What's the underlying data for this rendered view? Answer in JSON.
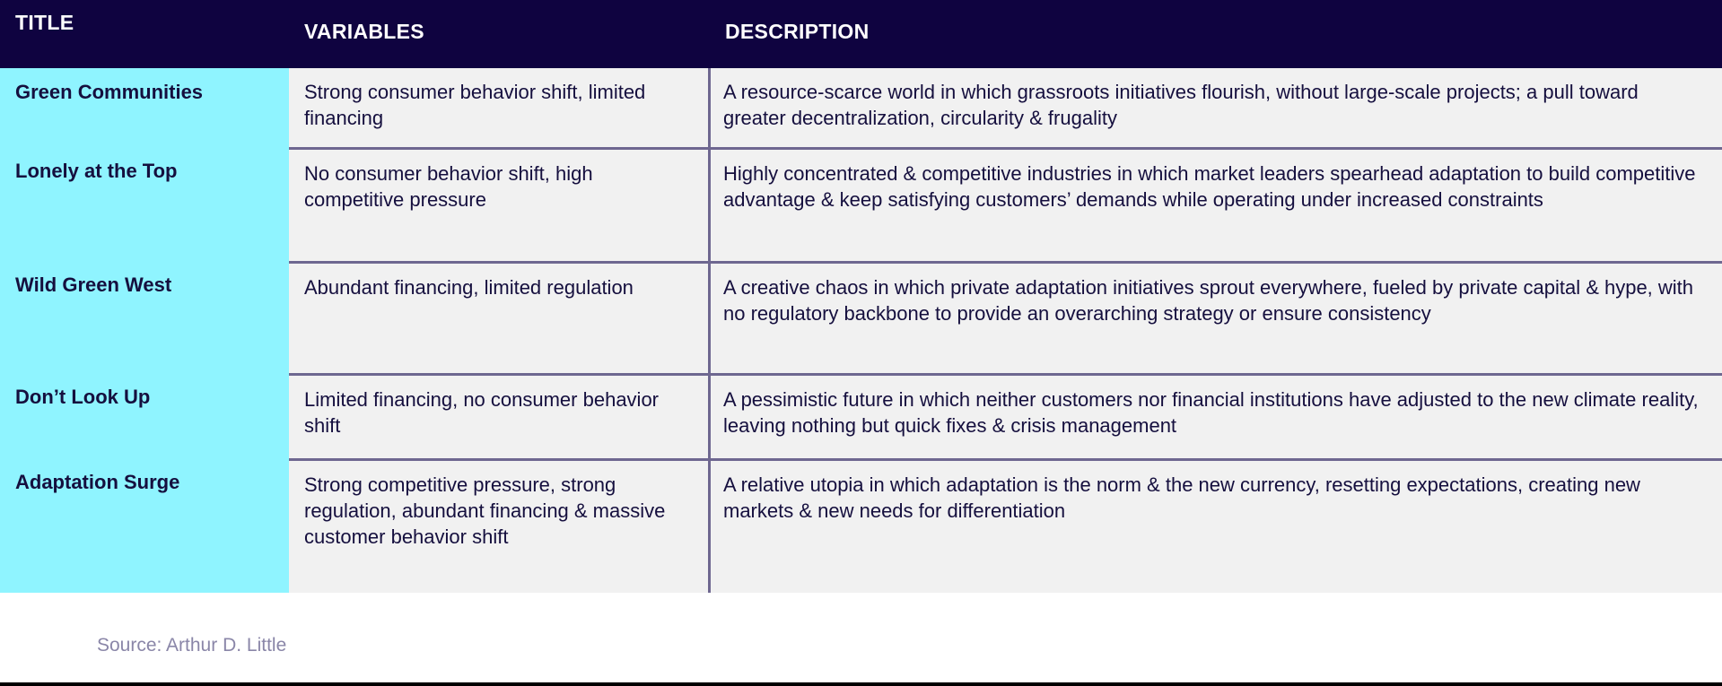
{
  "header": {
    "title": "TITLE",
    "variables": "VARIABLES",
    "description": "DESCRIPTION"
  },
  "rows": [
    {
      "title": "Green Communities",
      "variables": "Strong consumer behavior shift, limited financing",
      "description": "A resource-scarce world in which grassroots initiatives flourish, without large-scale projects; a pull toward greater decentralization, circularity & frugality"
    },
    {
      "title": "Lonely at the Top",
      "variables": "No consumer behavior shift, high competitive pressure",
      "description": "Highly concentrated & competitive industries in which market leaders spearhead adaptation to build competitive advantage & keep satisfying customers’ demands while operating under increased constraints"
    },
    {
      "title": "Wild Green West",
      "variables": "Abundant financing, limited regulation",
      "description": "A creative chaos in which private adaptation initiatives sprout everywhere, fueled by private capital & hype, with no regulatory backbone to provide an overarching strategy or ensure consistency"
    },
    {
      "title": "Don’t Look Up",
      "variables": "Limited financing, no consumer behavior shift",
      "description": "A pessimistic future in which neither customers nor financial institutions have adjusted to the new climate reality, leaving nothing but quick fixes & crisis management"
    },
    {
      "title": "Adaptation Surge",
      "variables": "Strong competitive pressure, strong regulation, abundant financing & massive customer behavior shift",
      "description": "A relative utopia in which adaptation is the norm & the new currency, resetting expectations, creating new markets & new needs for differentiation"
    }
  ],
  "source": "Source: Arthur D. Little",
  "colors": {
    "header_bg": "#0f0340",
    "title_col_bg": "#8ff4ff",
    "cell_bg": "#f1f1f1",
    "border": "#6e6790"
  }
}
